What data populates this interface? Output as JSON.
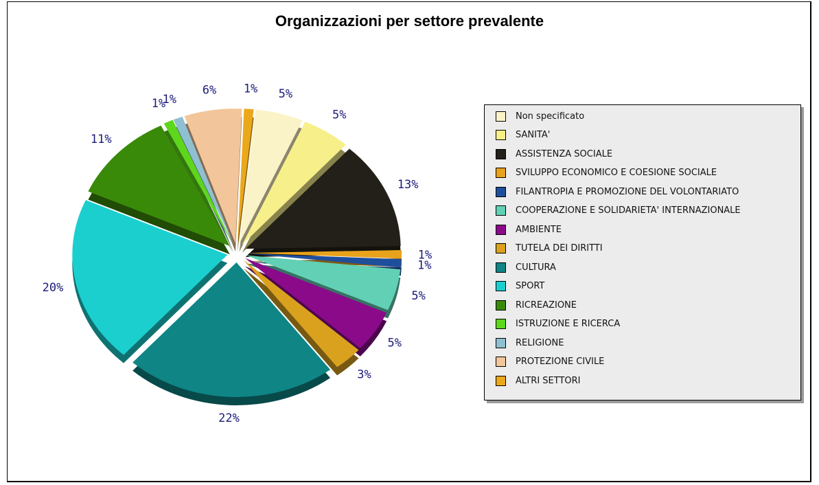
{
  "chart_data": {
    "type": "pie",
    "title": "Organizzazioni per settore prevalente",
    "legend_position": "right",
    "slices": [
      {
        "label": "Non specificato",
        "value": 5,
        "value_label": "5%",
        "color": "#fbf3c8"
      },
      {
        "label": "SANITA'",
        "value": 5,
        "value_label": "5%",
        "color": "#f7ef8a"
      },
      {
        "label": "ASSISTENZA SOCIALE",
        "value": 13,
        "value_label": "13%",
        "color": "#222018"
      },
      {
        "label": "SVILUPPO ECONOMICO E COESIONE SOCIALE",
        "value": 1,
        "value_label": "1%",
        "color": "#e8a21c"
      },
      {
        "label": "FILANTROPIA E PROMOZIONE DEL VOLONTARIATO",
        "value": 1,
        "value_label": "1%",
        "color": "#1e4f9c"
      },
      {
        "label": "COOPERAZIONE E SOLIDARIETA' INTERNAZIONALE",
        "value": 5,
        "value_label": "5%",
        "color": "#62d0b4"
      },
      {
        "label": "AMBIENTE",
        "value": 5,
        "value_label": "5%",
        "color": "#8a0a8a"
      },
      {
        "label": "TUTELA DEI DIRITTI",
        "value": 3,
        "value_label": "3%",
        "color": "#d9a11e"
      },
      {
        "label": "CULTURA",
        "value": 22,
        "value_label": "22%",
        "color": "#0f8585"
      },
      {
        "label": "SPORT",
        "value": 20,
        "value_label": "20%",
        "color": "#1ccfcf"
      },
      {
        "label": "RICREAZIONE",
        "value": 11,
        "value_label": "11%",
        "color": "#3a8a0a"
      },
      {
        "label": "ISTRUZIONE E RICERCA",
        "value": 1,
        "value_label": "1%",
        "color": "#5ed61c"
      },
      {
        "label": "RELIGIONE",
        "value": 1,
        "value_label": "1%",
        "color": "#8fc0d2"
      },
      {
        "label": "PROTEZIONE CIVILE",
        "value": 6,
        "value_label": "6%",
        "color": "#f2c69a"
      },
      {
        "label": "ALTRI SETTORI",
        "value": 1,
        "value_label": "1%",
        "color": "#eaa81a"
      }
    ]
  }
}
